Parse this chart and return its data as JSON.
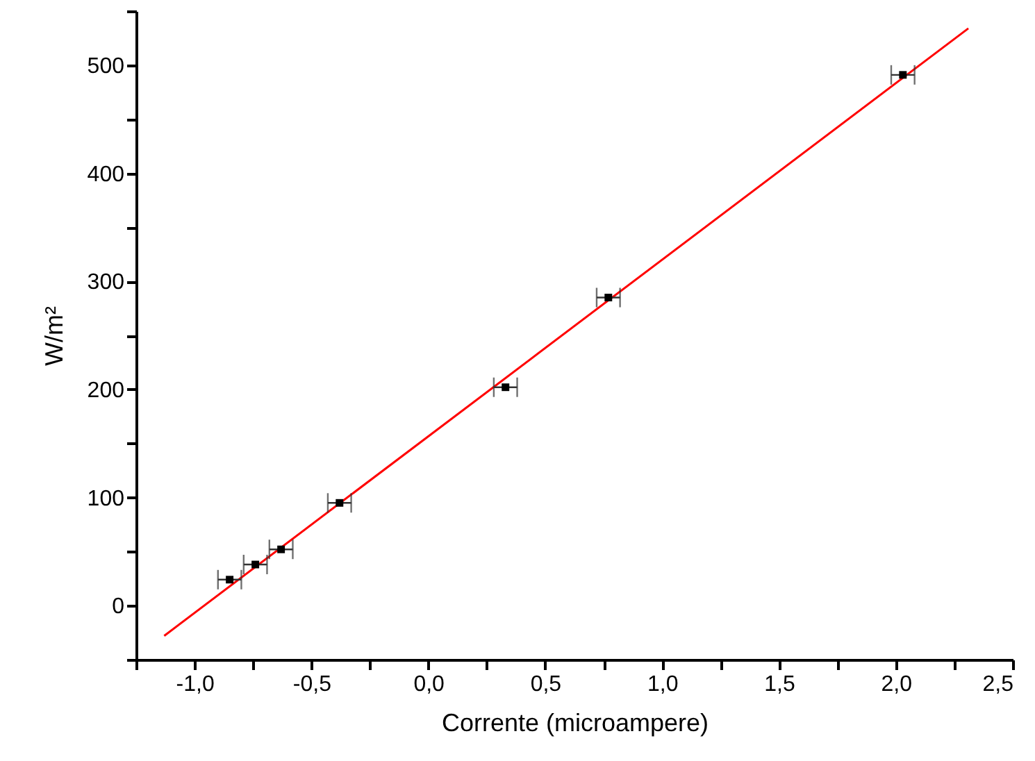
{
  "chart_data": {
    "type": "scatter",
    "xlabel": "Corrente (microampere)",
    "ylabel": "W/m²",
    "xlim": [
      -1.25,
      2.5
    ],
    "ylim": [
      -50,
      550
    ],
    "xticks": [
      {
        "value": -1.25,
        "label": null
      },
      {
        "value": -1,
        "label": "-1,0"
      },
      {
        "value": -0.75,
        "label": null
      },
      {
        "value": -0.5,
        "label": "-0,5"
      },
      {
        "value": -0.25,
        "label": null
      },
      {
        "value": 0,
        "label": "0,0"
      },
      {
        "value": 0.25,
        "label": null
      },
      {
        "value": 0.5,
        "label": "0,5"
      },
      {
        "value": 0.75,
        "label": null
      },
      {
        "value": 1,
        "label": "1,0"
      },
      {
        "value": 1.25,
        "label": null
      },
      {
        "value": 1.5,
        "label": "1,5"
      },
      {
        "value": 1.75,
        "label": null
      },
      {
        "value": 2,
        "label": "2,0"
      },
      {
        "value": 2.25,
        "label": null
      },
      {
        "value": 2.5,
        "label": "2,5"
      }
    ],
    "yticks": [
      {
        "value": -50,
        "label": null
      },
      0,
      {
        "value": 50,
        "label": null
      },
      100,
      {
        "value": 150,
        "label": null
      },
      200,
      {
        "value": 250,
        "label": null
      },
      300,
      {
        "value": 350,
        "label": null
      },
      400,
      {
        "value": 450,
        "label": null
      },
      500,
      {
        "value": 550,
        "label": null
      }
    ],
    "series": [
      {
        "type": "line",
        "color": "#ff0000",
        "marker": "none",
        "x": [
          -1.13,
          2.31
        ],
        "values": [
          -28,
          534
        ]
      },
      {
        "color": "#000000",
        "marker": "square",
        "x": [
          -0.85,
          -0.74,
          -0.63,
          -0.38,
          0.33,
          0.77,
          2.03
        ],
        "values": [
          24,
          38,
          52,
          95,
          202,
          285,
          491
        ],
        "xerrors": [
          0.05,
          0.05,
          0.05,
          0.05,
          0.05,
          0.05,
          0.05
        ]
      }
    ]
  }
}
